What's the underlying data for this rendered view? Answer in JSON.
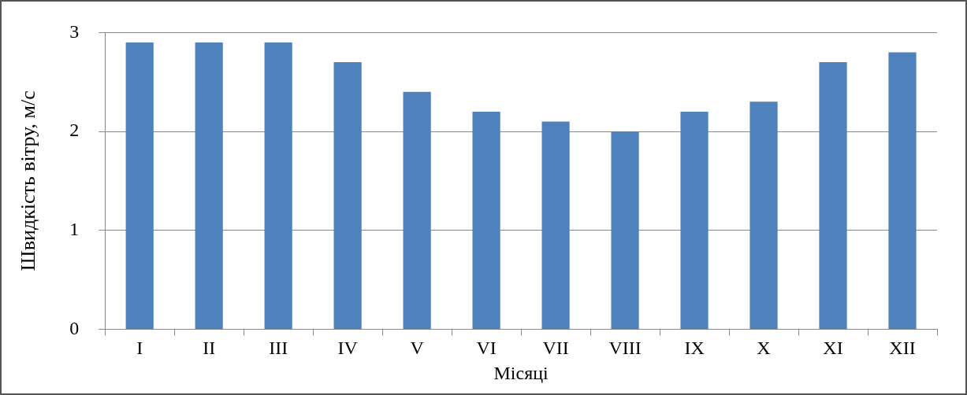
{
  "chart_data": {
    "type": "bar",
    "xlabel": "Місяці",
    "ylabel": "Швидкість вітру, м/с",
    "categories": [
      "I",
      "II",
      "III",
      "IV",
      "V",
      "VI",
      "VII",
      "VIII",
      "IX",
      "X",
      "XI",
      "XII"
    ],
    "values": [
      2.9,
      2.9,
      2.9,
      2.7,
      2.4,
      2.2,
      2.1,
      2.0,
      2.2,
      2.3,
      2.7,
      2.8
    ],
    "color": "#4f81bd",
    "ylim": [
      0,
      3
    ],
    "yticks": [
      0,
      1,
      2,
      3
    ],
    "grid": "y",
    "legend": false
  }
}
